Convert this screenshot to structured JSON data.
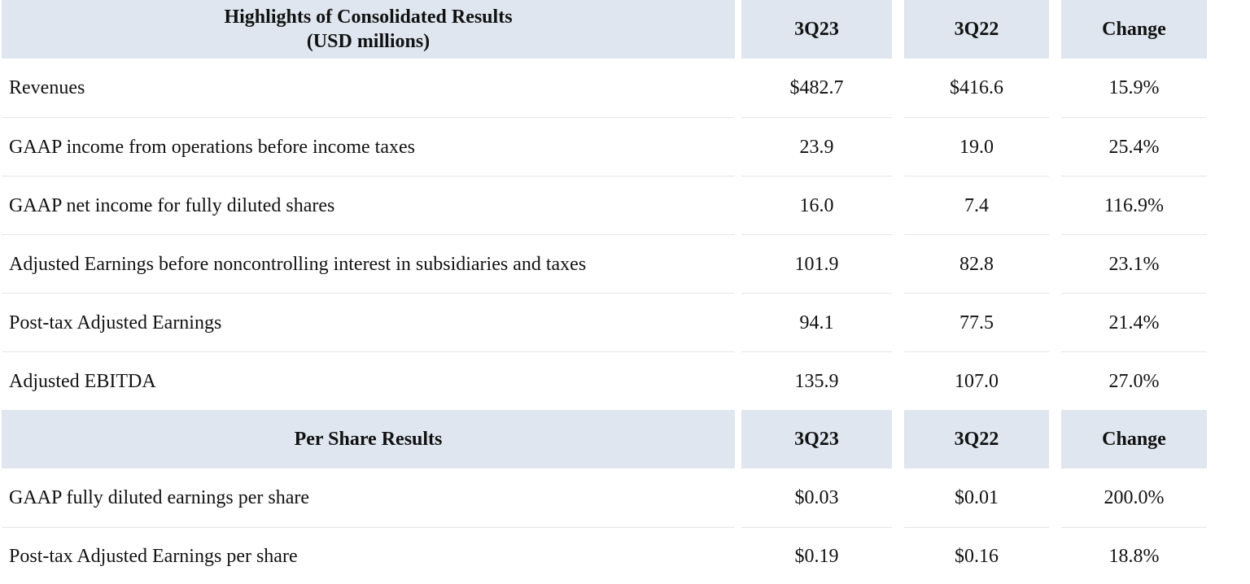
{
  "sections": [
    {
      "header": {
        "title": [
          "Highlights of Consolidated Results",
          "(USD millions)"
        ],
        "columns": [
          "3Q23",
          "3Q22",
          "Change"
        ]
      },
      "rows": [
        [
          "Revenues",
          "$482.7",
          "$416.6",
          "15.9%"
        ],
        [
          "GAAP income from operations before income taxes",
          "23.9",
          "19.0",
          "25.4%"
        ],
        [
          "GAAP net income for fully diluted shares",
          "16.0",
          "7.4",
          "116.9%"
        ],
        [
          "Adjusted Earnings before noncontrolling interest in subsidiaries and taxes",
          "101.9",
          "82.8",
          "23.1%"
        ],
        [
          "Post-tax Adjusted Earnings",
          "94.1",
          "77.5",
          "21.4%"
        ],
        [
          "Adjusted EBITDA",
          "135.9",
          "107.0",
          "27.0%"
        ]
      ]
    },
    {
      "header": {
        "title": [
          "Per Share Results"
        ],
        "columns": [
          "3Q23",
          "3Q22",
          "Change"
        ]
      },
      "rows": [
        [
          "GAAP fully diluted earnings per share",
          "$0.03",
          "$0.01",
          "200.0%"
        ],
        [
          "Post-tax Adjusted Earnings per share",
          "$0.19",
          "$0.16",
          "18.8%"
        ]
      ]
    }
  ]
}
